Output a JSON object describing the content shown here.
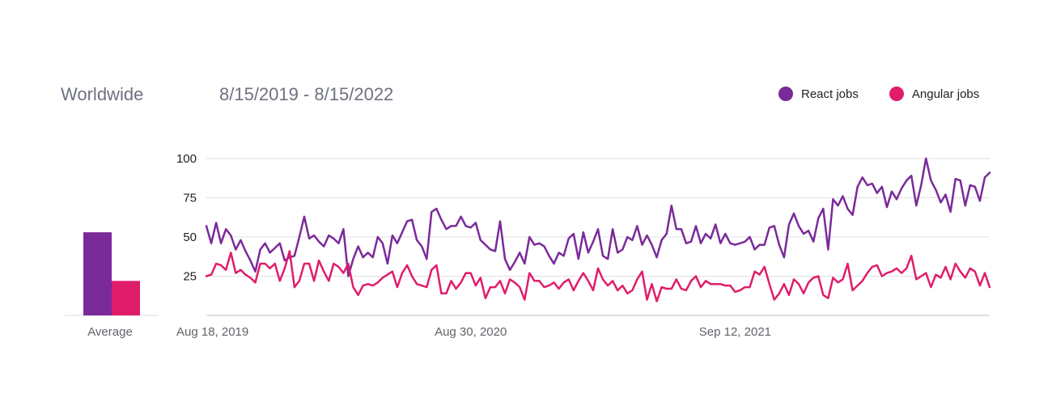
{
  "header": {
    "region": "Worldwide",
    "date_range": "8/15/2019 - 8/15/2022"
  },
  "legend": {
    "placement": "top-right",
    "items": [
      {
        "label": "React jobs",
        "color": "#7b2a9a"
      },
      {
        "label": "Angular jobs",
        "color": "#df1d6b"
      }
    ]
  },
  "average": {
    "label": "Average",
    "react": 53,
    "angular": 22
  },
  "chart_data": {
    "type": "line",
    "title": "",
    "xlabel": "",
    "ylabel": "",
    "ylim": [
      0,
      100
    ],
    "yticks": [
      25,
      50,
      75,
      100
    ],
    "grid": true,
    "xtick_labels": [
      "Aug 18, 2019",
      "Aug 30, 2020",
      "Sep 12, 2021"
    ],
    "x_start": "Aug 18, 2019",
    "x_step": "weekly",
    "series": [
      {
        "name": "React jobs",
        "color": "#7b2a9a",
        "values": [
          57,
          46,
          59,
          46,
          55,
          51,
          42,
          48,
          41,
          35,
          28,
          42,
          46,
          40,
          43,
          46,
          35,
          37,
          38,
          50,
          63,
          49,
          51,
          47,
          44,
          51,
          49,
          46,
          55,
          25,
          36,
          44,
          37,
          40,
          37,
          50,
          46,
          33,
          51,
          46,
          53,
          60,
          61,
          48,
          44,
          36,
          66,
          68,
          61,
          55,
          57,
          57,
          63,
          57,
          56,
          59,
          48,
          45,
          42,
          41,
          60,
          36,
          29,
          34,
          40,
          33,
          50,
          45,
          46,
          44,
          38,
          33,
          40,
          38,
          49,
          52,
          36,
          53,
          40,
          47,
          55,
          38,
          36,
          55,
          40,
          42,
          50,
          48,
          57,
          45,
          51,
          45,
          37,
          48,
          52,
          70,
          55,
          55,
          46,
          47,
          57,
          46,
          52,
          49,
          58,
          46,
          52,
          46,
          45,
          46,
          47,
          50,
          42,
          45,
          45,
          56,
          57,
          45,
          37,
          58,
          65,
          57,
          52,
          54,
          47,
          62,
          68,
          42,
          74,
          70,
          76,
          68,
          64,
          82,
          88,
          83,
          84,
          78,
          82,
          69,
          79,
          74,
          81,
          86,
          89,
          70,
          83,
          100,
          86,
          80,
          72,
          77,
          66,
          87,
          86,
          70,
          83,
          82,
          73,
          88,
          91
        ]
      },
      {
        "name": "Angular jobs",
        "color": "#df1d6b",
        "values": [
          25,
          26,
          33,
          32,
          29,
          40,
          27,
          29,
          26,
          24,
          21,
          33,
          33,
          30,
          33,
          22,
          30,
          41,
          18,
          22,
          33,
          33,
          22,
          35,
          28,
          22,
          33,
          31,
          27,
          33,
          18,
          13,
          19,
          20,
          19,
          21,
          24,
          26,
          28,
          18,
          27,
          32,
          25,
          20,
          19,
          18,
          29,
          32,
          14,
          14,
          22,
          17,
          21,
          27,
          27,
          19,
          24,
          11,
          18,
          18,
          22,
          14,
          23,
          21,
          18,
          10,
          27,
          22,
          22,
          18,
          19,
          21,
          17,
          21,
          23,
          16,
          22,
          27,
          22,
          16,
          30,
          23,
          19,
          22,
          16,
          19,
          14,
          16,
          23,
          28,
          10,
          20,
          9,
          18,
          17,
          17,
          23,
          17,
          16,
          22,
          25,
          18,
          22,
          20,
          20,
          20,
          19,
          19,
          15,
          16,
          18,
          18,
          28,
          26,
          31,
          20,
          10,
          14,
          20,
          13,
          23,
          20,
          14,
          21,
          24,
          25,
          13,
          11,
          24,
          21,
          23,
          33,
          16,
          19,
          22,
          27,
          31,
          32,
          25,
          27,
          28,
          30,
          27,
          30,
          38,
          23,
          25,
          27,
          18,
          26,
          24,
          31,
          23,
          33,
          28,
          24,
          30,
          28,
          19,
          27,
          18
        ]
      }
    ]
  }
}
